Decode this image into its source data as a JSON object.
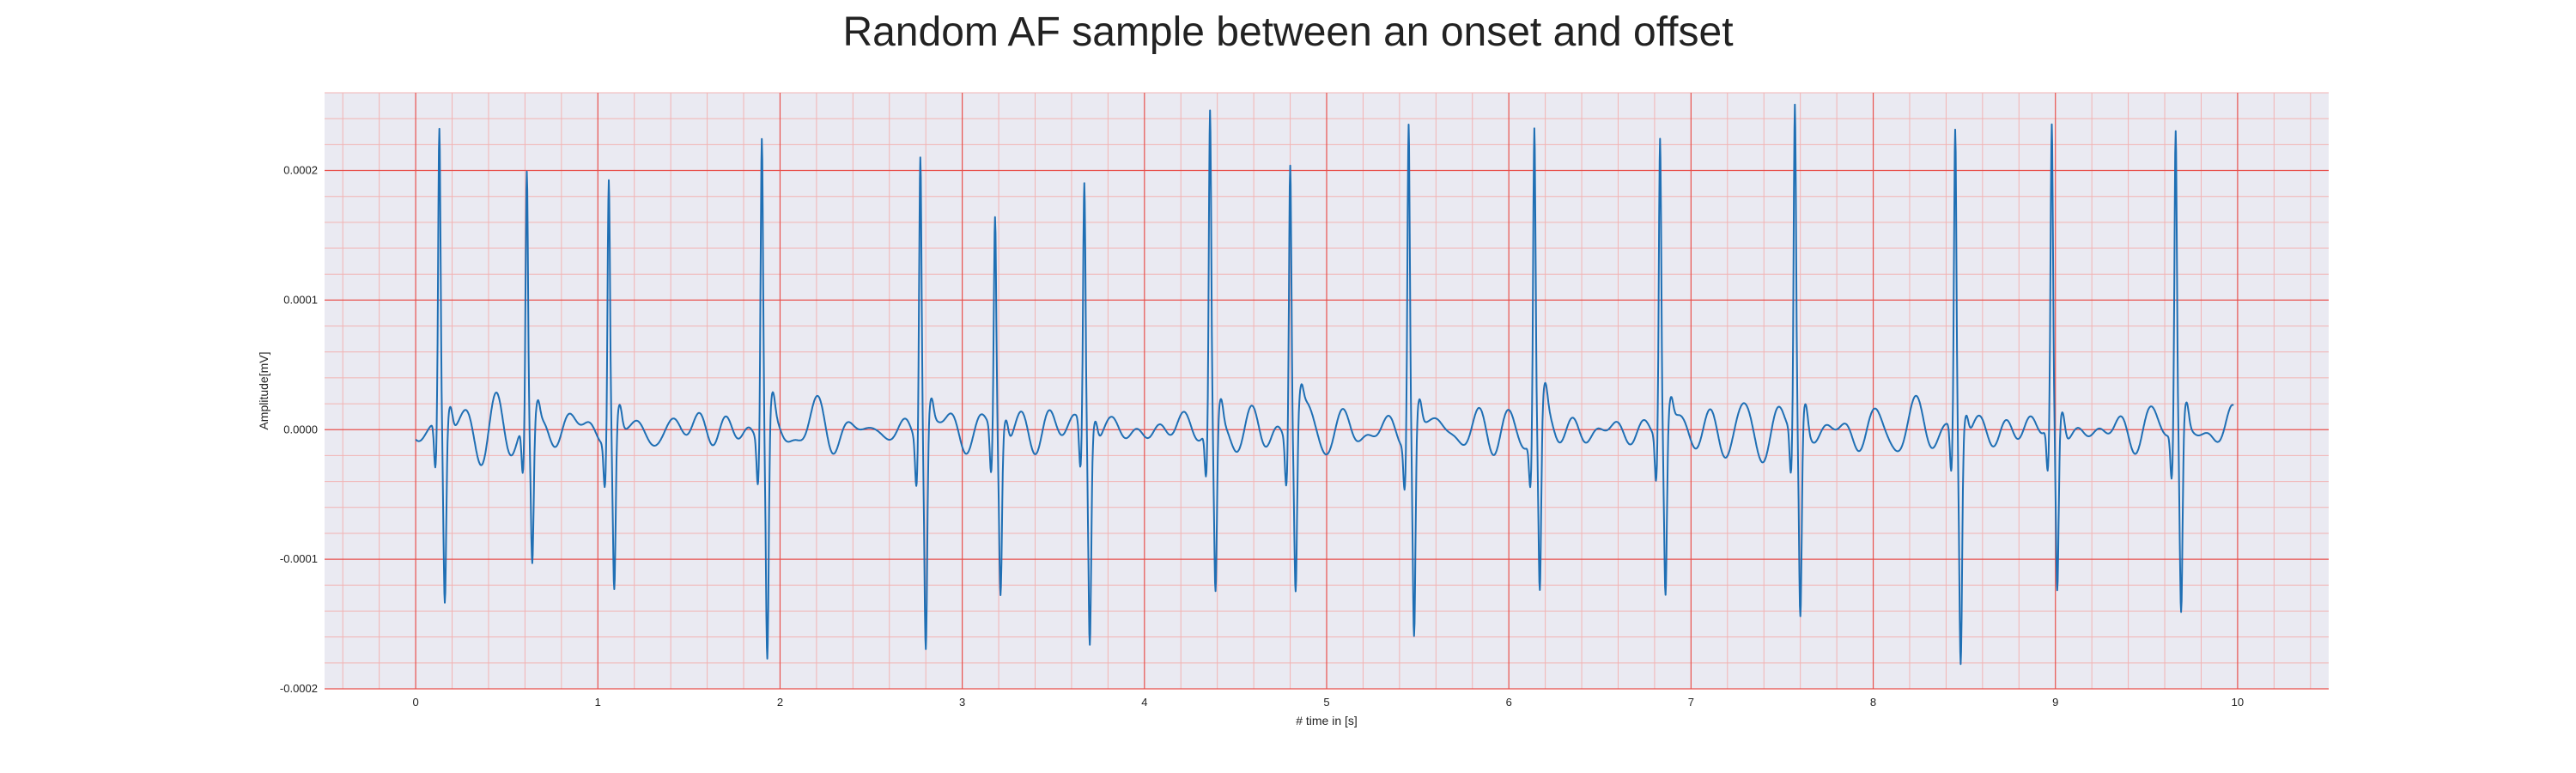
{
  "chart_data": {
    "type": "line",
    "title": "Random AF sample between an onset and offset",
    "xlabel": "# time in [s]",
    "ylabel": "Amplitude[mV]",
    "xlim": [
      -0.5,
      10.5
    ],
    "ylim": [
      -0.0002,
      0.00026
    ],
    "x_ticks": [
      0,
      1,
      2,
      3,
      4,
      5,
      6,
      7,
      8,
      9,
      10
    ],
    "x_tick_labels": [
      "0",
      "1",
      "2",
      "3",
      "4",
      "5",
      "6",
      "7",
      "8",
      "9",
      "10"
    ],
    "y_ticks": [
      -0.0002,
      -0.0001,
      0.0,
      0.0001,
      0.0002
    ],
    "y_tick_labels": [
      "-0.0002",
      "-0.0001",
      "0.0000",
      "0.0001",
      "0.0002"
    ],
    "grid": true,
    "minor_grid": true,
    "colors": {
      "background": "#eaeaf2",
      "major_grid": "#e8504c",
      "minor_grid": "#f2b3b3",
      "line": "#1f6fb4"
    },
    "beats": [
      {
        "t": 0.13,
        "peak": 0.000228,
        "trough": -0.000136
      },
      {
        "t": 0.61,
        "peak": 0.000198,
        "trough": -0.000104
      },
      {
        "t": 1.06,
        "peak": 0.000198,
        "trough": -0.000125
      },
      {
        "t": 1.9,
        "peak": 0.000232,
        "trough": -0.000181
      },
      {
        "t": 2.77,
        "peak": 0.000221,
        "trough": -0.000168
      },
      {
        "t": 3.18,
        "peak": 0.000167,
        "trough": -0.000121
      },
      {
        "t": 3.67,
        "peak": 0.000193,
        "trough": -0.000156
      },
      {
        "t": 4.36,
        "peak": 0.000244,
        "trough": -0.000131
      },
      {
        "t": 4.8,
        "peak": 0.000214,
        "trough": -0.000127
      },
      {
        "t": 5.45,
        "peak": 0.000242,
        "trough": -0.000163
      },
      {
        "t": 6.14,
        "peak": 0.000234,
        "trough": -0.000137
      },
      {
        "t": 6.83,
        "peak": 0.000229,
        "trough": -0.00013
      },
      {
        "t": 7.57,
        "peak": 0.000248,
        "trough": -0.000152
      },
      {
        "t": 8.45,
        "peak": 0.000234,
        "trough": -0.000174
      },
      {
        "t": 8.98,
        "peak": 0.000228,
        "trough": -0.00013
      },
      {
        "t": 9.66,
        "peak": 0.000231,
        "trough": -0.000145
      }
    ],
    "baseline_range": [
      0.0,
      9.98
    ]
  }
}
